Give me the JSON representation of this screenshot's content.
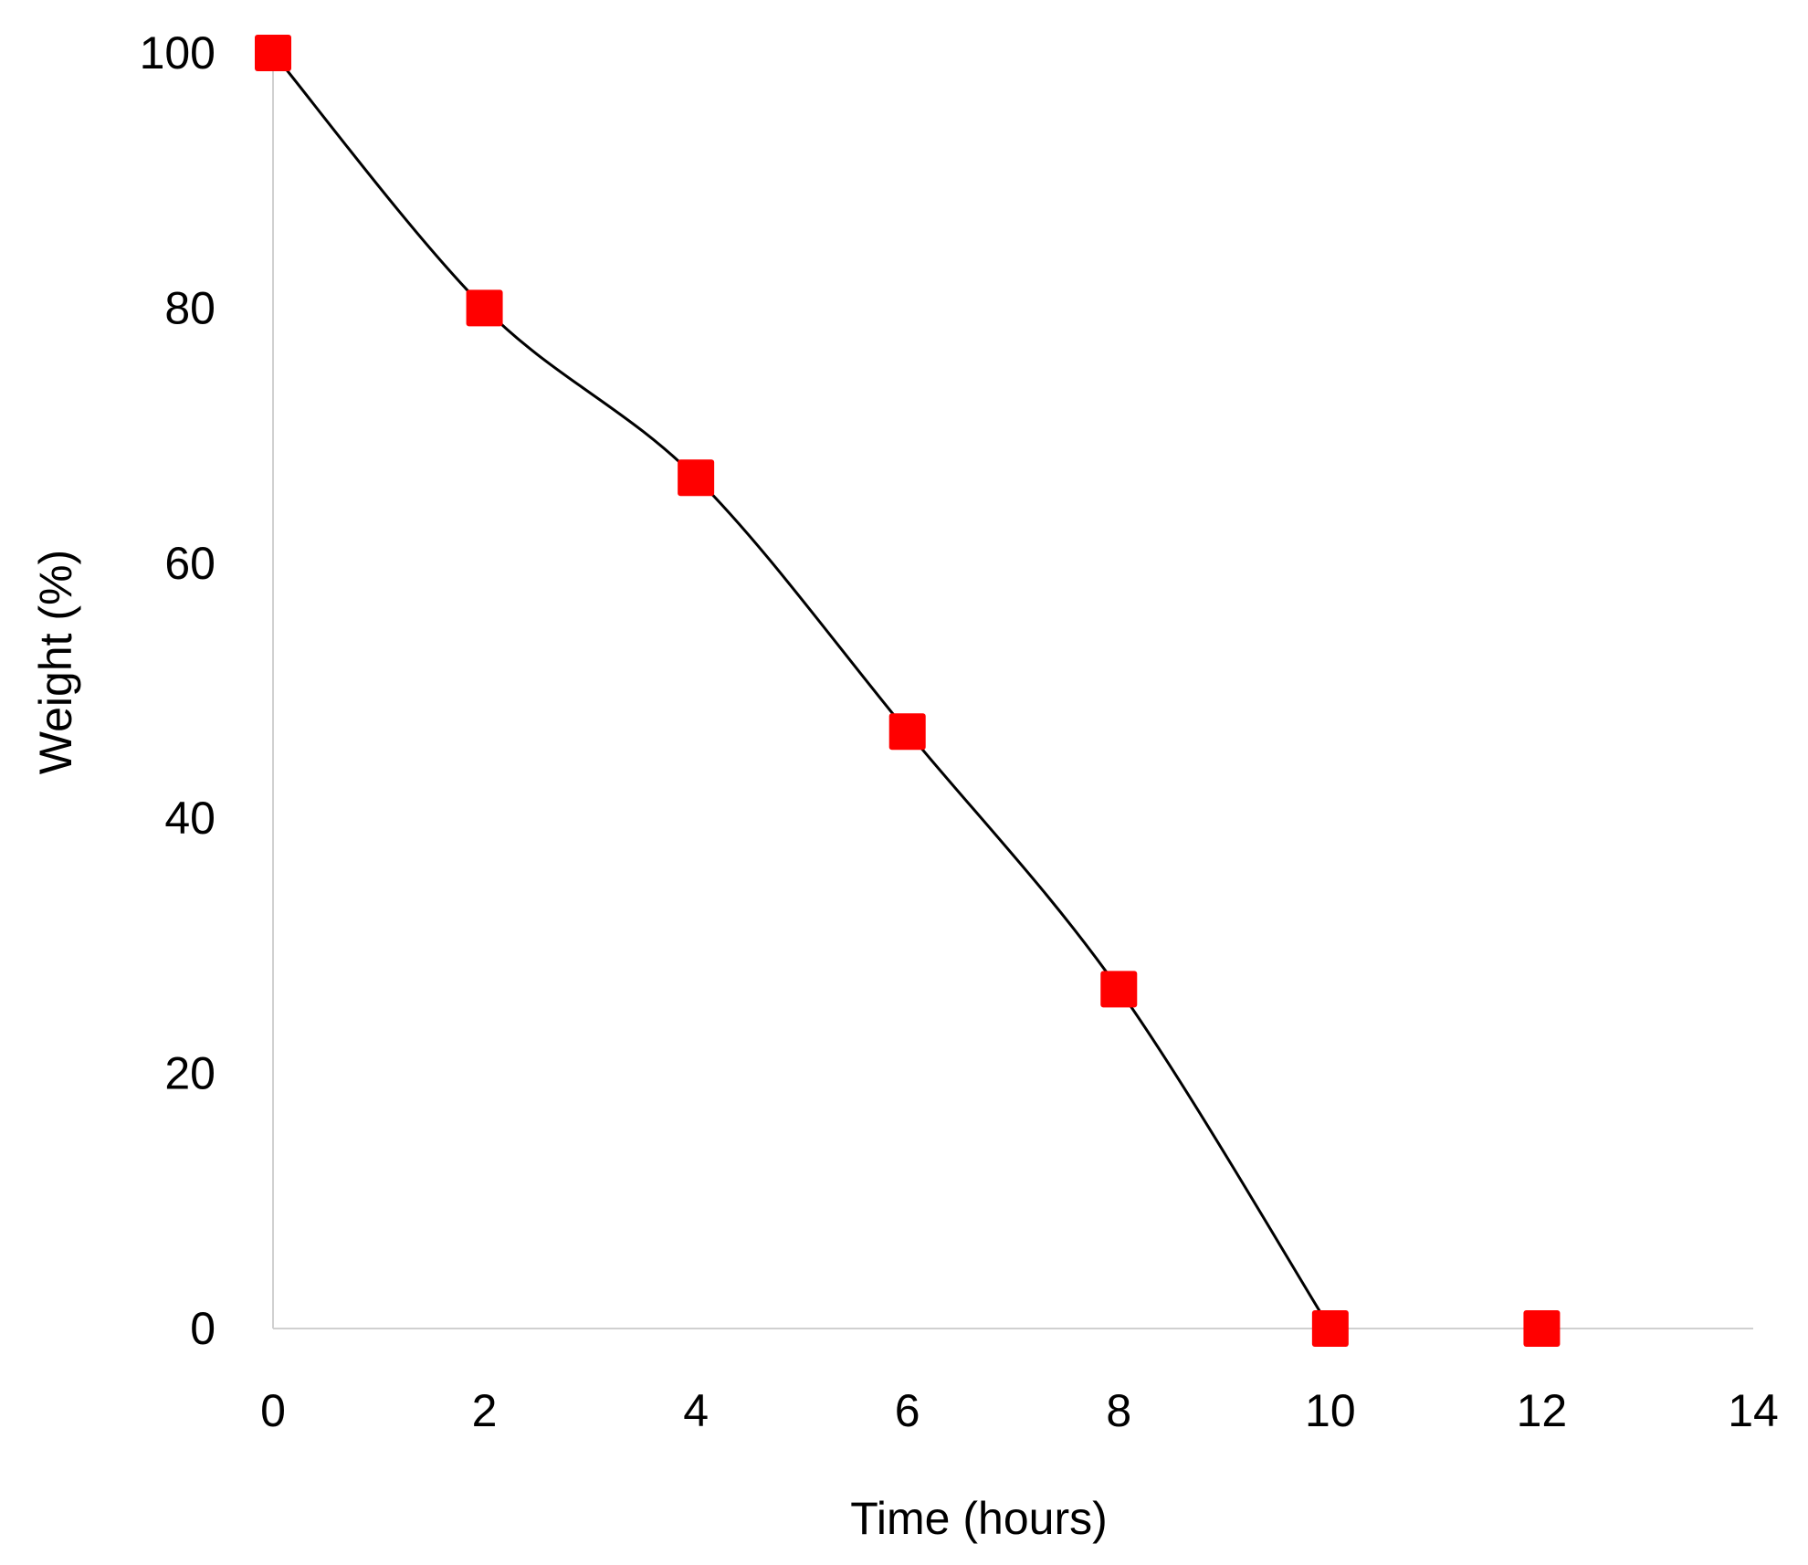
{
  "chart_data": {
    "type": "line",
    "title": "",
    "xlabel": "Time (hours)",
    "ylabel": "Weight (%)",
    "xlim": [
      0,
      14
    ],
    "ylim": [
      0,
      100
    ],
    "x_ticks": [
      "0",
      "2",
      "4",
      "6",
      "8",
      "10",
      "12",
      "14"
    ],
    "y_ticks": [
      "0",
      "20",
      "40",
      "60",
      "80",
      "100"
    ],
    "grid": false,
    "smooth": true,
    "series": [
      {
        "x": [
          0,
          2,
          4,
          6,
          8,
          10,
          12
        ],
        "y": [
          100,
          80,
          66.7,
          46.8,
          26.6,
          0,
          0
        ],
        "line_color": "#000000",
        "marker": "square",
        "marker_color": "#ff0000"
      }
    ]
  }
}
